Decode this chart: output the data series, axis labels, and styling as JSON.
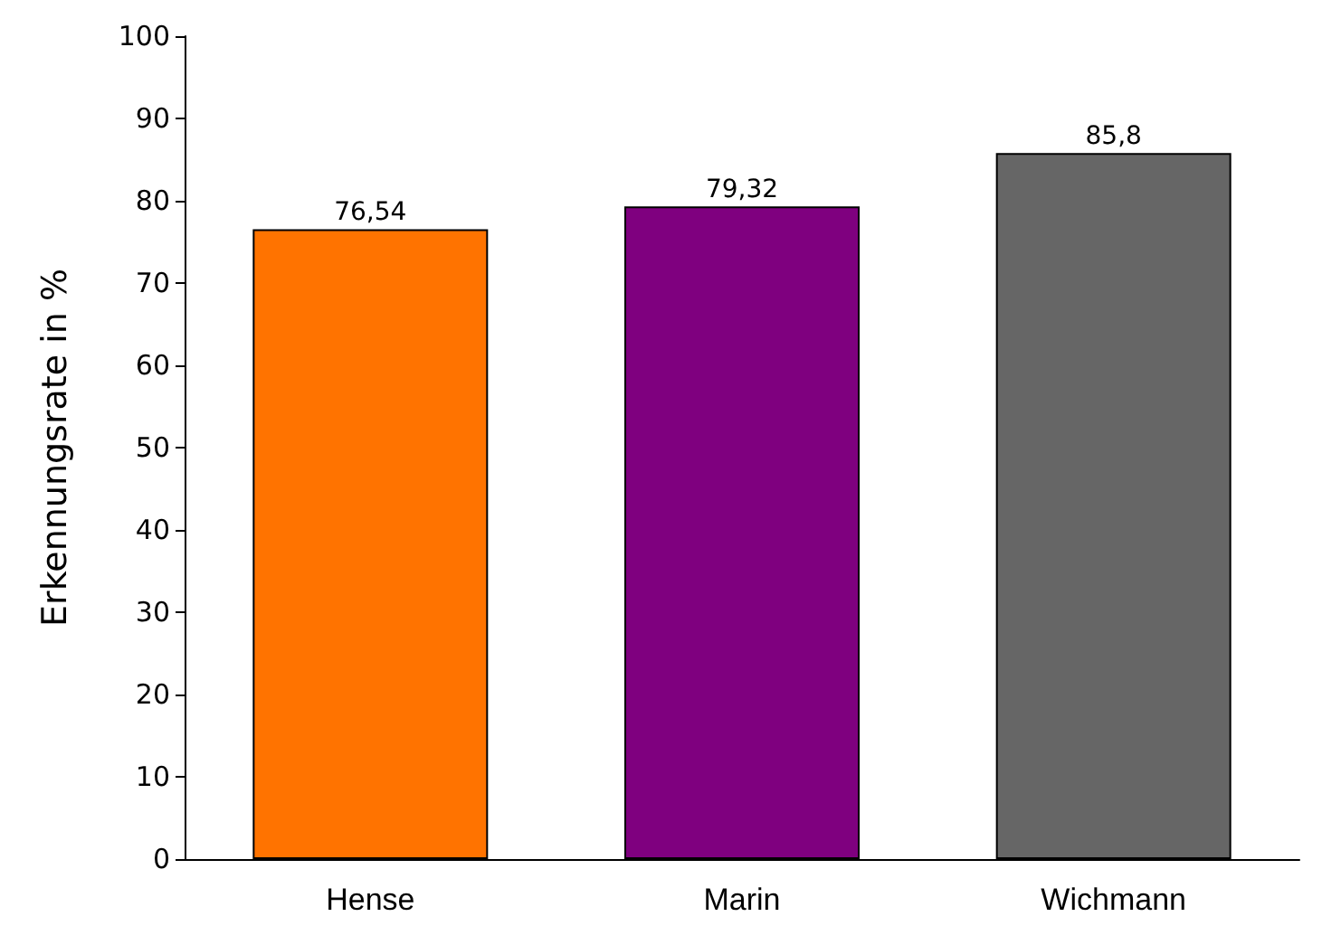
{
  "chart_data": {
    "type": "bar",
    "ylabel": "Erkennungsrate in %",
    "categories": [
      "Hense",
      "Marin",
      "Wichmann"
    ],
    "values": [
      76.54,
      79.32,
      85.8
    ],
    "colors": [
      "#ff7300",
      "#7f007f",
      "#666666"
    ],
    "value_labels": [
      "76,54",
      "79,32",
      "85,8"
    ],
    "ylim": [
      0,
      100
    ],
    "yticks": [
      0,
      10,
      20,
      30,
      40,
      50,
      60,
      70,
      80,
      90,
      100
    ],
    "grid": false
  }
}
